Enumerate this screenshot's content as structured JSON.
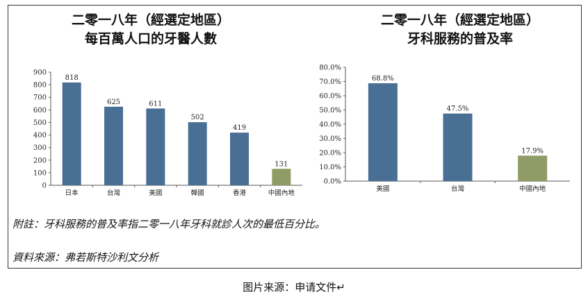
{
  "charts": {
    "left": {
      "title_line1": "二零一八年（經選定地區）",
      "title_line2": "每百萬人口的牙醫人數"
    },
    "right": {
      "title_line1": "二零一八年（經選定地區）",
      "title_line2": "牙科服務的普及率"
    }
  },
  "note": "附註：牙科服務的普及率指二零一八年牙科就診人次的最低百分比。",
  "source": "資料來源：弗若斯特沙利文分析",
  "caption": "图片来源：申请文件↵",
  "colors": {
    "bar_primary": "#4a6f94",
    "bar_mainland": "#8f9c66"
  },
  "chart_data": [
    {
      "type": "bar",
      "title": "二零一八年（經選定地區）每百萬人口的牙醫人數",
      "categories": [
        "日本",
        "台灣",
        "美國",
        "韓國",
        "香港",
        "中國內地"
      ],
      "values": [
        818,
        625,
        611,
        502,
        419,
        131
      ],
      "data_labels": [
        "818",
        "625",
        "611",
        "502",
        "419",
        "131"
      ],
      "ylim": [
        0,
        900
      ],
      "yticks": [
        0,
        100,
        200,
        300,
        400,
        500,
        600,
        700,
        800,
        900
      ],
      "ytick_labels": [
        "0",
        "100",
        "200",
        "300",
        "400",
        "500",
        "600",
        "700",
        "800",
        "900"
      ],
      "grid": false,
      "xlabel": "",
      "ylabel": ""
    },
    {
      "type": "bar",
      "title": "二零一八年（經選定地區）牙科服務的普及率",
      "categories": [
        "美國",
        "台灣",
        "中國內地"
      ],
      "values": [
        68.8,
        47.5,
        17.9
      ],
      "data_labels": [
        "68.8%",
        "47.5%",
        "17.9%"
      ],
      "ylim": [
        0,
        80
      ],
      "yticks": [
        0,
        10,
        20,
        30,
        40,
        50,
        60,
        70,
        80
      ],
      "ytick_labels": [
        "0.0%",
        "10.0%",
        "20.0%",
        "30.0%",
        "40.0%",
        "50.0%",
        "60.0%",
        "70.0%",
        "80.0%"
      ],
      "grid": false,
      "xlabel": "",
      "ylabel": ""
    }
  ]
}
